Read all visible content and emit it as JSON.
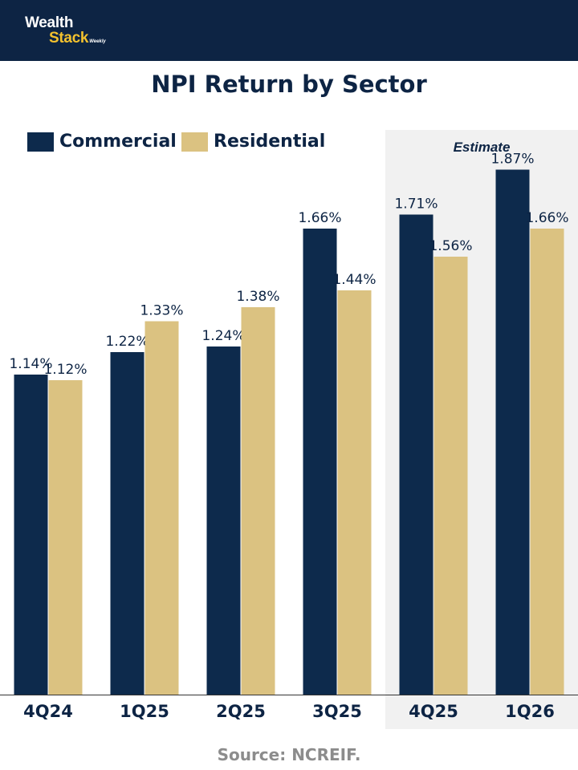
{
  "brand": {
    "line1": "Wealth",
    "line2": "Stack",
    "tag": "Weekly"
  },
  "estimate_label": "Estimate",
  "source": "Source: NCREIF.",
  "colors": {
    "header": "#0d2444",
    "commercial": "#0d2a4c",
    "residential": "#dbc281",
    "estimate_bg": "#f1f1f1",
    "brand_accent": "#f2c12e"
  },
  "chart_data": {
    "type": "bar",
    "title": "NPI Return by Sector",
    "categories": [
      "4Q24",
      "1Q25",
      "2Q25",
      "3Q25",
      "4Q25",
      "1Q26"
    ],
    "series": [
      {
        "name": "Commercial",
        "values": [
          1.14,
          1.22,
          1.24,
          1.66,
          1.71,
          1.87
        ],
        "labels": [
          "1.14%",
          "1.22%",
          "1.24%",
          "1.66%",
          "1.71%",
          "1.87%"
        ]
      },
      {
        "name": "Residential",
        "values": [
          1.12,
          1.33,
          1.38,
          1.44,
          1.56,
          1.66
        ],
        "labels": [
          "1.12%",
          "1.33%",
          "1.38%",
          "1.44%",
          "1.56%",
          "1.66%"
        ]
      }
    ],
    "estimate_categories": [
      "4Q25",
      "1Q26"
    ],
    "xlabel": "",
    "ylabel": "",
    "ylim": [
      0,
      2.0
    ],
    "grid": false,
    "legend": "top-left"
  }
}
